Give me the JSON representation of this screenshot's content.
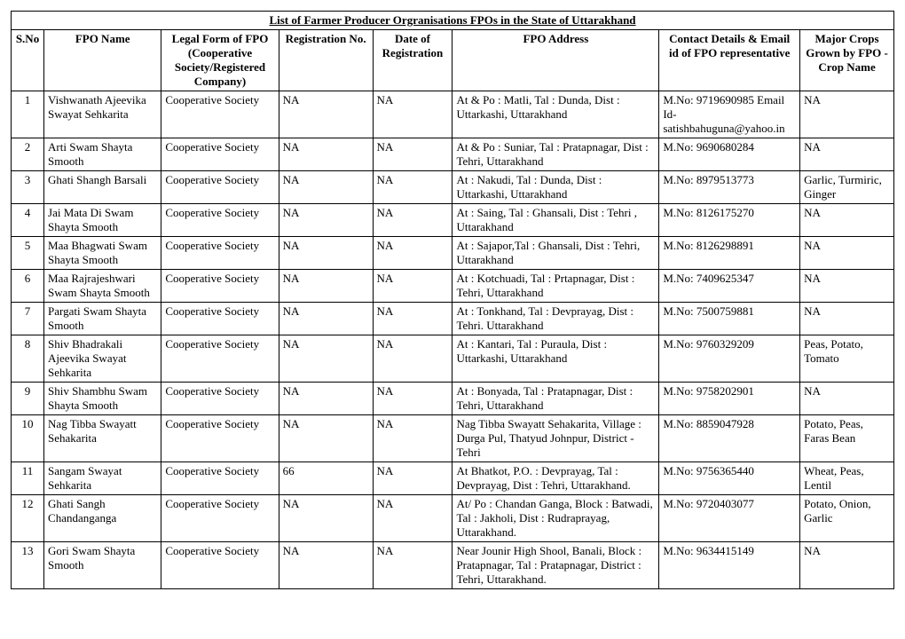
{
  "title": "List of Farmer Producer Orgranisations FPOs in the State of Uttarakhand",
  "columns": [
    "S.No",
    "FPO Name",
    "Legal Form of FPO (Cooperative Society/Registered Company)",
    "Registration No.",
    "Date of Registration",
    "FPO Address",
    "Contact Details & Email id of FPO representative",
    "Major Crops Grown by FPO - Crop Name"
  ],
  "rows": [
    {
      "sno": "1",
      "name": "Vishwanath  Ajeevika Swayat Sehkarita",
      "legal": "Cooperative Society",
      "reg": "NA",
      "date": "NA",
      "addr": "At & Po : Matli, Tal : Dunda, Dist : Uttarkashi, Uttarakhand",
      "contact": "M.No: 9719690985 Email Id- satishbahuguna@yahoo.in",
      "crop": "NA"
    },
    {
      "sno": "2",
      "name": "Arti Swam Shayta Smooth",
      "legal": "Cooperative Society",
      "reg": "NA",
      "date": "NA",
      "addr": "At & Po : Suniar, Tal : Pratapnagar, Dist : Tehri, Uttarakhand",
      "contact": "M.No: 9690680284",
      "crop": "NA"
    },
    {
      "sno": "3",
      "name": "Ghati Shangh Barsali",
      "legal": "Cooperative Society",
      "reg": "NA",
      "date": "NA",
      "addr": "At : Nakudi, Tal : Dunda, Dist : Uttarkashi, Uttarakhand",
      "contact": "M.No: 8979513773",
      "crop": "Garlic, Turmiric, Ginger"
    },
    {
      "sno": "4",
      "name": "Jai Mata Di Swam Shayta Smooth",
      "legal": "Cooperative Society",
      "reg": "NA",
      "date": "NA",
      "addr": "At : Saing, Tal : Ghansali, Dist : Tehri , Uttarakhand",
      "contact": "M.No: 8126175270",
      "crop": "NA"
    },
    {
      "sno": "5",
      "name": "Maa Bhagwati Swam Shayta Smooth",
      "legal": "Cooperative Society",
      "reg": "NA",
      "date": "NA",
      "addr": "At : Sajapor,Tal : Ghansali, Dist : Tehri, Uttarakhand",
      "contact": "M.No: 8126298891",
      "crop": "NA"
    },
    {
      "sno": "6",
      "name": "Maa Rajrajeshwari Swam Shayta Smooth",
      "legal": "Cooperative Society",
      "reg": "NA",
      "date": "NA",
      "addr": "At : Kotchuadi, Tal : Prtapnagar, Dist : Tehri, Uttarakhand",
      "contact": "M.No: 7409625347",
      "crop": "NA"
    },
    {
      "sno": "7",
      "name": "Pargati Swam Shayta Smooth",
      "legal": "Cooperative Society",
      "reg": "NA",
      "date": "NA",
      "addr": "At : Tonkhand, Tal : Devprayag, Dist : Tehri. Uttarakhand",
      "contact": "M.No: 7500759881",
      "crop": "NA"
    },
    {
      "sno": "8",
      "name": "Shiv Bhadrakali Ajeevika Swayat Sehkarita",
      "legal": "Cooperative Society",
      "reg": "NA",
      "date": "NA",
      "addr": "At : Kantari, Tal : Puraula, Dist : Uttarkashi, Uttarakhand",
      "contact": "M.No: 9760329209",
      "crop": "Peas, Potato, Tomato"
    },
    {
      "sno": "9",
      "name": "Shiv Shambhu Swam Shayta Smooth",
      "legal": "Cooperative Society",
      "reg": "NA",
      "date": "NA",
      "addr": "At : Bonyada, Tal : Pratapnagar, Dist : Tehri, Uttarakhand",
      "contact": "M.No: 9758202901",
      "crop": "NA"
    },
    {
      "sno": "10",
      "name": "Nag Tibba Swayatt Sehakarita",
      "legal": "Cooperative Society",
      "reg": "NA",
      "date": "NA",
      "addr": "Nag Tibba Swayatt Sehakarita, Village : Durga Pul, Thatyud Johnpur, District - Tehri",
      "contact": "M.No: 8859047928",
      "crop": "Potato, Peas, Faras Bean"
    },
    {
      "sno": "11",
      "name": "Sangam Swayat Sehkarita",
      "legal": "Cooperative Society",
      "reg": "66",
      "date": "NA",
      "addr": "At Bhatkot, P.O. : Devprayag, Tal : Devprayag, Dist : Tehri, Uttarakhand.",
      "contact": "M.No: 9756365440",
      "crop": "Wheat, Peas, Lentil"
    },
    {
      "sno": "12",
      "name": "Ghati Sangh Chandanganga",
      "legal": "Cooperative Society",
      "reg": "NA",
      "date": "NA",
      "addr": "At/ Po : Chandan Ganga, Block : Batwadi, Tal : Jakholi, Dist : Rudraprayag, Uttarakhand.",
      "contact": "M.No: 9720403077",
      "crop": "Potato, Onion, Garlic"
    },
    {
      "sno": "13",
      "name": "Gori Swam Shayta Smooth",
      "legal": "Cooperative Society",
      "reg": "NA",
      "date": "NA",
      "addr": "Near Jounir High Shool, Banali, Block : Pratapnagar, Tal : Pratapnagar, District : Tehri, Uttarakhand.",
      "contact": "M.No: 9634415149",
      "crop": "NA"
    }
  ]
}
